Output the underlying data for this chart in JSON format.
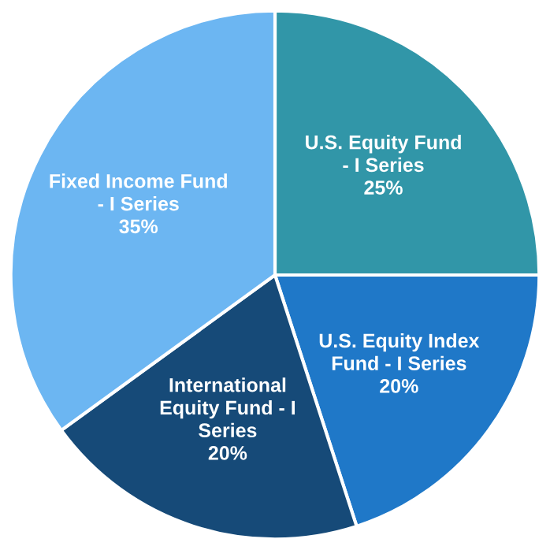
{
  "chart_data": {
    "type": "pie",
    "categories": [
      "U.S. Equity Fund - I Series",
      "U.S. Equity Index Fund - I Series",
      "International Equity Fund - I Series",
      "Fixed Income Fund - I Series"
    ],
    "values": [
      25,
      20,
      20,
      35
    ],
    "value_labels": [
      "25%",
      "20%",
      "20%",
      "35%"
    ],
    "colors": [
      "#3196a8",
      "#1f78c8",
      "#164a78",
      "#6cb6f2"
    ],
    "legend": false
  }
}
